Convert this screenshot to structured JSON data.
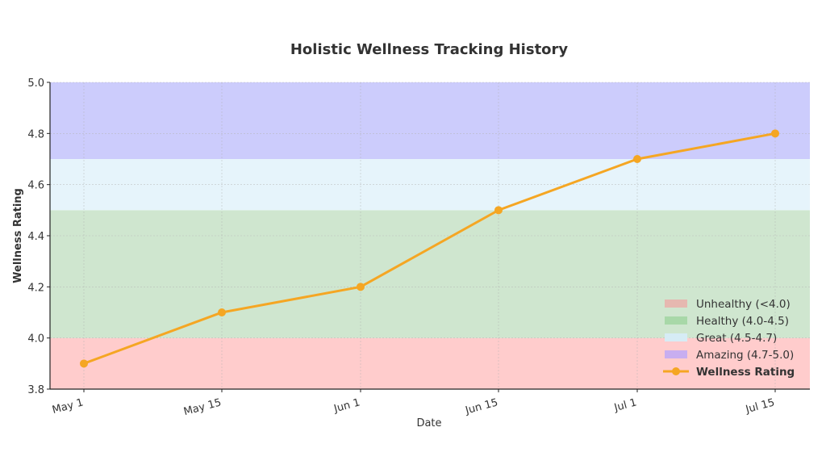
{
  "chart_data": {
    "type": "line",
    "title": "Holistic Wellness Tracking History",
    "xlabel": "Date",
    "ylabel": "Wellness Rating",
    "categories": [
      "May 1",
      "May 15",
      "Jun 1",
      "Jun 15",
      "Jul 1",
      "Jul 15"
    ],
    "series": [
      {
        "name": "Wellness Rating",
        "values": [
          3.9,
          4.1,
          4.2,
          4.5,
          4.7,
          4.8
        ],
        "color": "#f5a623"
      }
    ],
    "ylim": [
      3.8,
      5.0
    ],
    "yticks": [
      "3.8",
      "4.0",
      "4.2",
      "4.4",
      "4.6",
      "4.8",
      "5.0"
    ],
    "bands": [
      {
        "label": "Unhealthy (<4.0)",
        "from": 3.8,
        "to": 4.0,
        "color": "#ffcccc",
        "legend_color": "#e6b8b0"
      },
      {
        "label": "Healthy (4.0-4.5)",
        "from": 4.0,
        "to": 4.5,
        "color": "#cfe6cf",
        "legend_color": "#a8d8a8"
      },
      {
        "label": "Great (4.5-4.7)",
        "from": 4.5,
        "to": 4.7,
        "color": "#e6f4fb",
        "legend_color": "#d6ecf5"
      },
      {
        "label": "Amazing (4.7-5.0)",
        "from": 4.7,
        "to": 5.0,
        "color": "#ccccfc",
        "legend_color": "#c8aef0"
      }
    ],
    "grid": true,
    "legend_position": "lower right"
  }
}
